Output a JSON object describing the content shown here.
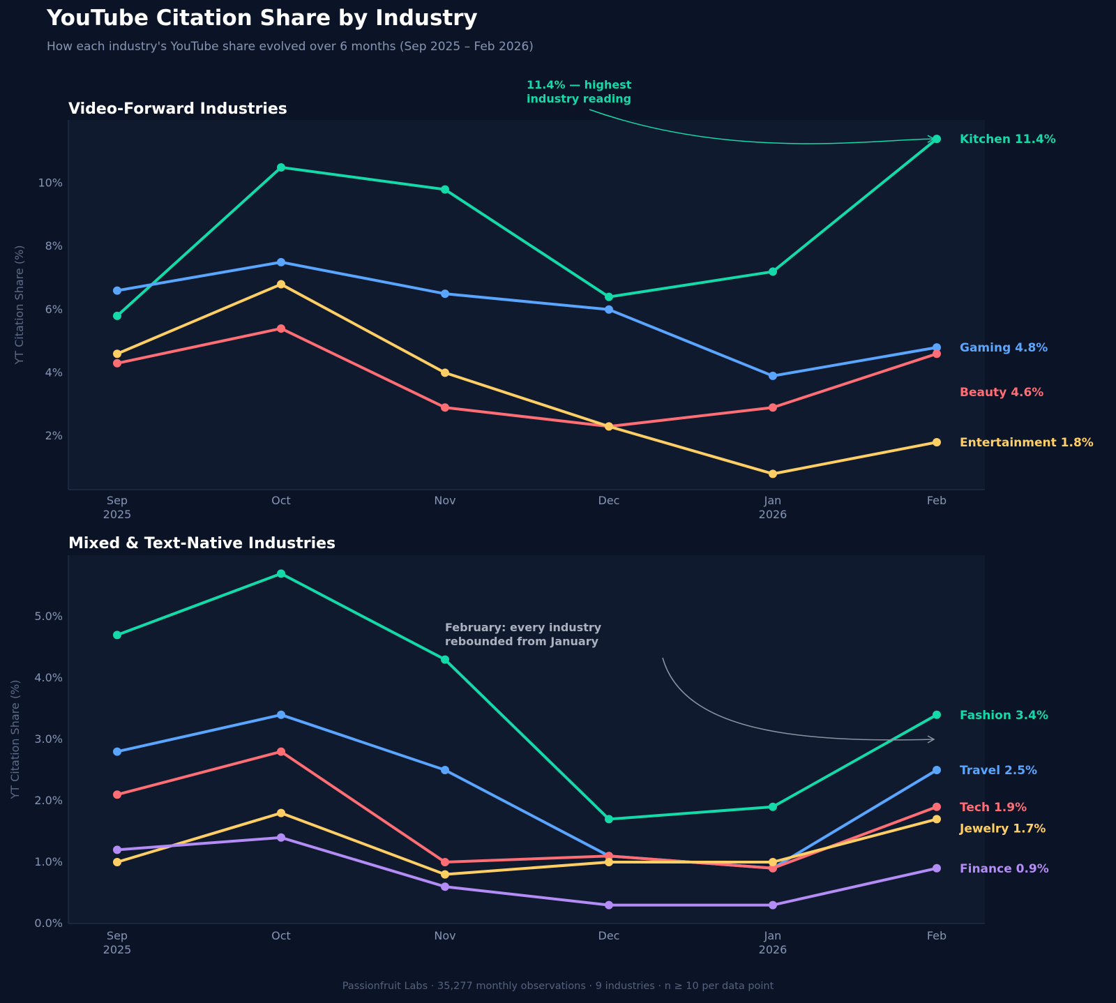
{
  "header": {
    "title": "YouTube Citation Share by Industry",
    "subtitle": "How each industry's YouTube share evolved over 6 months (Sep 2025 – Feb 2026)"
  },
  "footer": {
    "text": "Passionfruit Labs  ·  35,277 monthly observations  ·  9 industries  ·  n ≥ 10 per data point"
  },
  "colors": {
    "background": "#0b1426",
    "plot_background": "#0f1a2e",
    "axis_text": "#8795b5",
    "teal": "#14d9a8",
    "blue": "#5aa5ff",
    "coral": "#ff6e74",
    "yellow": "#ffcf66",
    "purple": "#b38cf5",
    "annotation_gray": "#aab1bf"
  },
  "chart_data": [
    {
      "type": "line",
      "title": "Video-Forward Industries",
      "ylabel": "YT Citation Share (%)",
      "xlabel": "",
      "categories": [
        "Sep",
        "Oct",
        "Nov",
        "Dec",
        "Jan",
        "Feb"
      ],
      "tick_labels": [
        "Sep\n2025",
        "Oct",
        "Nov",
        "Dec",
        "Jan\n2026",
        "Feb"
      ],
      "ylim": [
        0.3,
        12.0
      ],
      "yticks": [
        2,
        4,
        6,
        8,
        10
      ],
      "ytick_labels": [
        "2%",
        "4%",
        "6%",
        "8%",
        "10%"
      ],
      "grid": false,
      "series": [
        {
          "name": "Kitchen",
          "color": "#14d9a8",
          "values": [
            5.8,
            10.5,
            9.8,
            6.4,
            7.2,
            11.4
          ],
          "end_label": "Kitchen  11.4%"
        },
        {
          "name": "Gaming",
          "color": "#5aa5ff",
          "values": [
            6.6,
            7.5,
            6.5,
            6.0,
            3.9,
            4.8
          ],
          "end_label": "Gaming  4.8%"
        },
        {
          "name": "Beauty",
          "color": "#ff6e74",
          "values": [
            4.3,
            5.4,
            2.9,
            2.3,
            2.9,
            4.6
          ],
          "end_label": "Beauty  4.6%"
        },
        {
          "name": "Entertainment",
          "color": "#ffcf66",
          "values": [
            4.6,
            6.8,
            4.0,
            2.3,
            0.8,
            1.8
          ],
          "end_label": "Entertainment  1.8%"
        }
      ],
      "annotation": {
        "text_lines": [
          "11.4% — highest",
          "industry reading"
        ],
        "color": "#14d9a8",
        "target_category": "Feb",
        "target_value": 11.4
      }
    },
    {
      "type": "line",
      "title": "Mixed & Text-Native Industries",
      "ylabel": "YT Citation Share (%)",
      "xlabel": "",
      "categories": [
        "Sep",
        "Oct",
        "Nov",
        "Dec",
        "Jan",
        "Feb"
      ],
      "tick_labels": [
        "Sep\n2025",
        "Oct",
        "Nov",
        "Dec",
        "Jan\n2026",
        "Feb"
      ],
      "ylim": [
        0.0,
        6.0
      ],
      "yticks": [
        0,
        1,
        2,
        3,
        4,
        5
      ],
      "ytick_labels": [
        "0.0%",
        "1.0%",
        "2.0%",
        "3.0%",
        "4.0%",
        "5.0%"
      ],
      "grid": false,
      "series": [
        {
          "name": "Fashion",
          "color": "#14d9a8",
          "values": [
            4.7,
            5.7,
            4.3,
            1.7,
            1.9,
            3.4
          ],
          "end_label": "Fashion  3.4%"
        },
        {
          "name": "Travel",
          "color": "#5aa5ff",
          "values": [
            2.8,
            3.4,
            2.5,
            1.1,
            0.9,
            2.5
          ],
          "end_label": "Travel  2.5%"
        },
        {
          "name": "Tech",
          "color": "#ff6e74",
          "values": [
            2.1,
            2.8,
            1.0,
            1.1,
            0.9,
            1.9
          ],
          "end_label": "Tech  1.9%"
        },
        {
          "name": "Jewelry",
          "color": "#ffcf66",
          "values": [
            1.0,
            1.8,
            0.8,
            1.0,
            1.0,
            1.7
          ],
          "end_label": "Jewelry  1.7%"
        },
        {
          "name": "Finance",
          "color": "#b38cf5",
          "values": [
            1.2,
            1.4,
            0.6,
            0.3,
            0.3,
            0.9
          ],
          "end_label": "Finance  0.9%"
        }
      ],
      "annotation": {
        "text_lines": [
          "February: every industry",
          "rebounded from January"
        ],
        "color": "#aab1bf",
        "target_category": "Feb",
        "target_value": 3.0
      }
    }
  ]
}
